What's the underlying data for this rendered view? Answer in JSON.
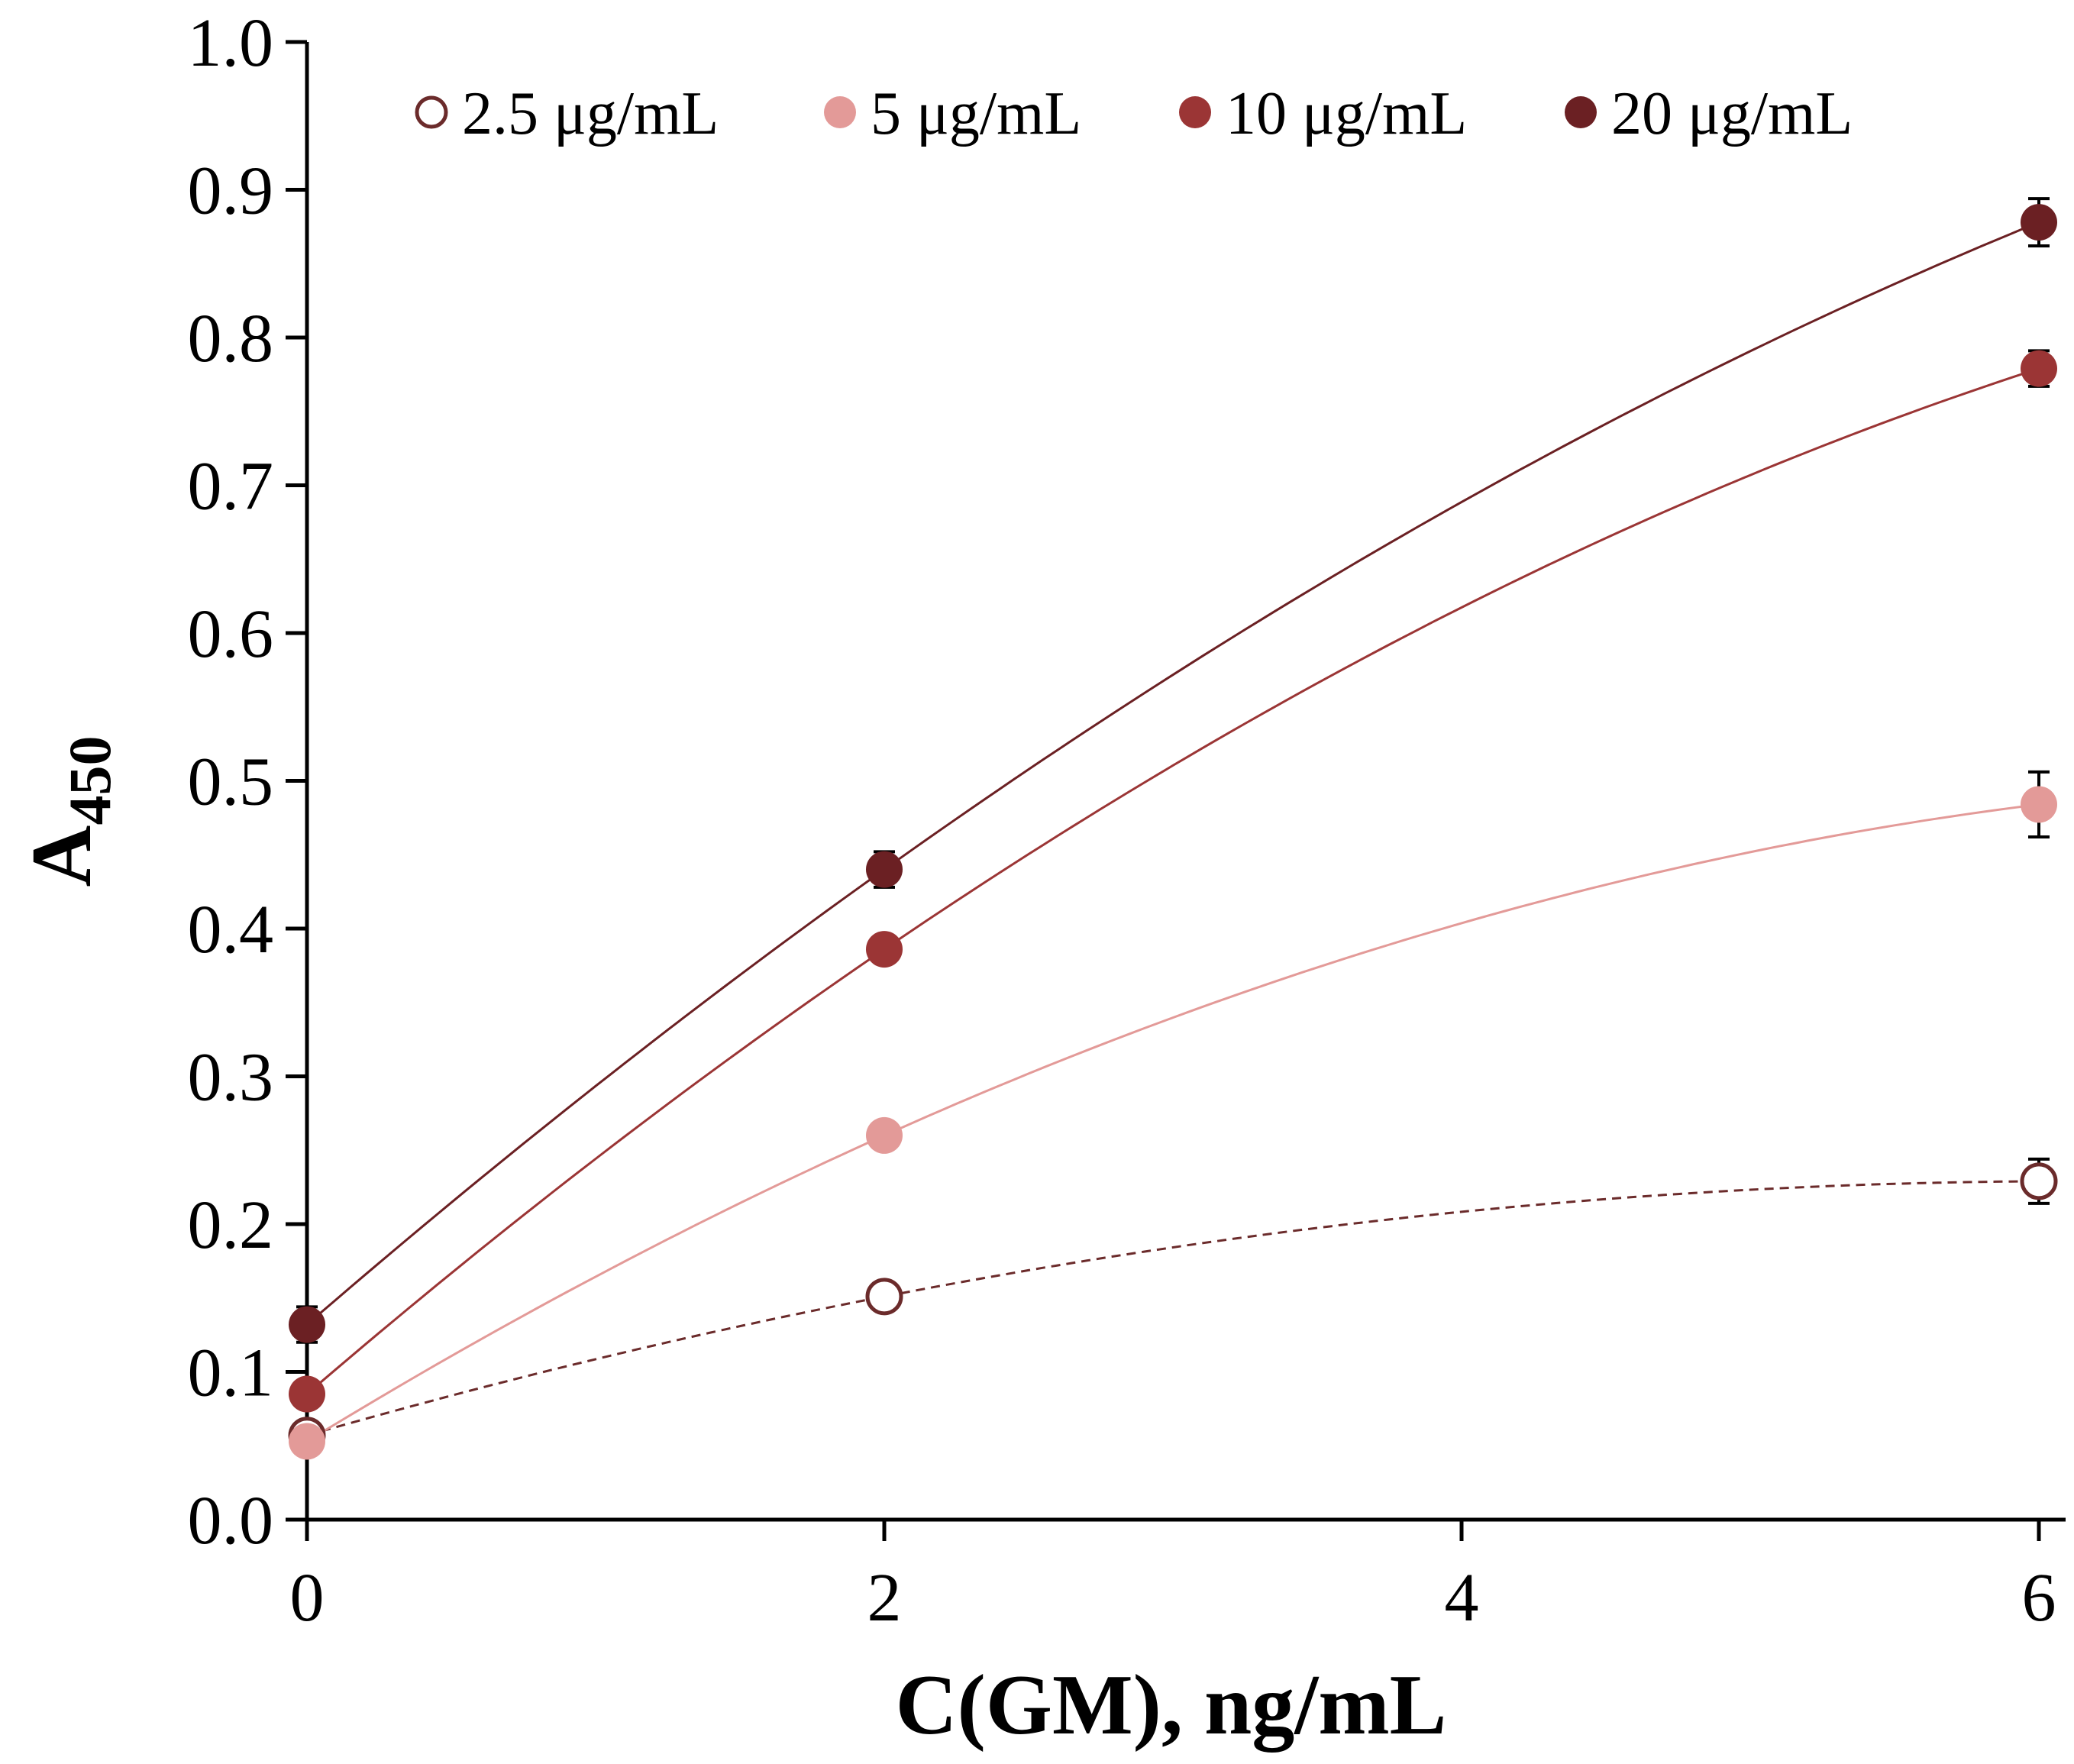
{
  "chart_data": {
    "type": "scatter",
    "title": "",
    "xlabel": "C(GM), ng/mL",
    "ylabel_main": "A",
    "ylabel_sub": "450",
    "xlim": [
      0,
      6.05
    ],
    "ylim": [
      0,
      1.0
    ],
    "x_ticks": [
      0,
      2,
      4,
      6
    ],
    "y_ticks": [
      0.0,
      0.1,
      0.2,
      0.3,
      0.4,
      0.5,
      0.6,
      0.7,
      0.8,
      0.9,
      1.0
    ],
    "x_tick_labels": [
      "0",
      "2",
      "4",
      "6"
    ],
    "y_tick_labels": [
      "0.0",
      "0.1",
      "0.2",
      "0.3",
      "0.4",
      "0.5",
      "0.6",
      "0.7",
      "0.8",
      "0.9",
      "1.0"
    ],
    "legend_position": "top",
    "series": [
      {
        "name": "2.5 μg/mL",
        "color": "#6b2b2b",
        "marker": "open",
        "line_style": "dashed",
        "x": [
          0,
          2,
          6
        ],
        "y": [
          0.057,
          0.151,
          0.229
        ],
        "error": [
          0.003,
          0.005,
          0.015
        ]
      },
      {
        "name": "5 μg/mL",
        "color": "#e39a98",
        "marker": "filled",
        "line_style": "solid",
        "x": [
          0,
          2,
          6
        ],
        "y": [
          0.053,
          0.26,
          0.484
        ],
        "error": [
          0.003,
          0.005,
          0.022
        ]
      },
      {
        "name": "10 μg/mL",
        "color": "#9b3535",
        "marker": "filled",
        "line_style": "solid",
        "x": [
          0,
          2,
          6
        ],
        "y": [
          0.085,
          0.386,
          0.779
        ],
        "error": [
          0.004,
          0.006,
          0.012
        ]
      },
      {
        "name": "20 μg/mL",
        "color": "#6b2023",
        "marker": "filled",
        "line_style": "solid",
        "x": [
          0,
          2,
          6
        ],
        "y": [
          0.132,
          0.44,
          0.878
        ],
        "error": [
          0.012,
          0.012,
          0.016
        ]
      }
    ]
  }
}
